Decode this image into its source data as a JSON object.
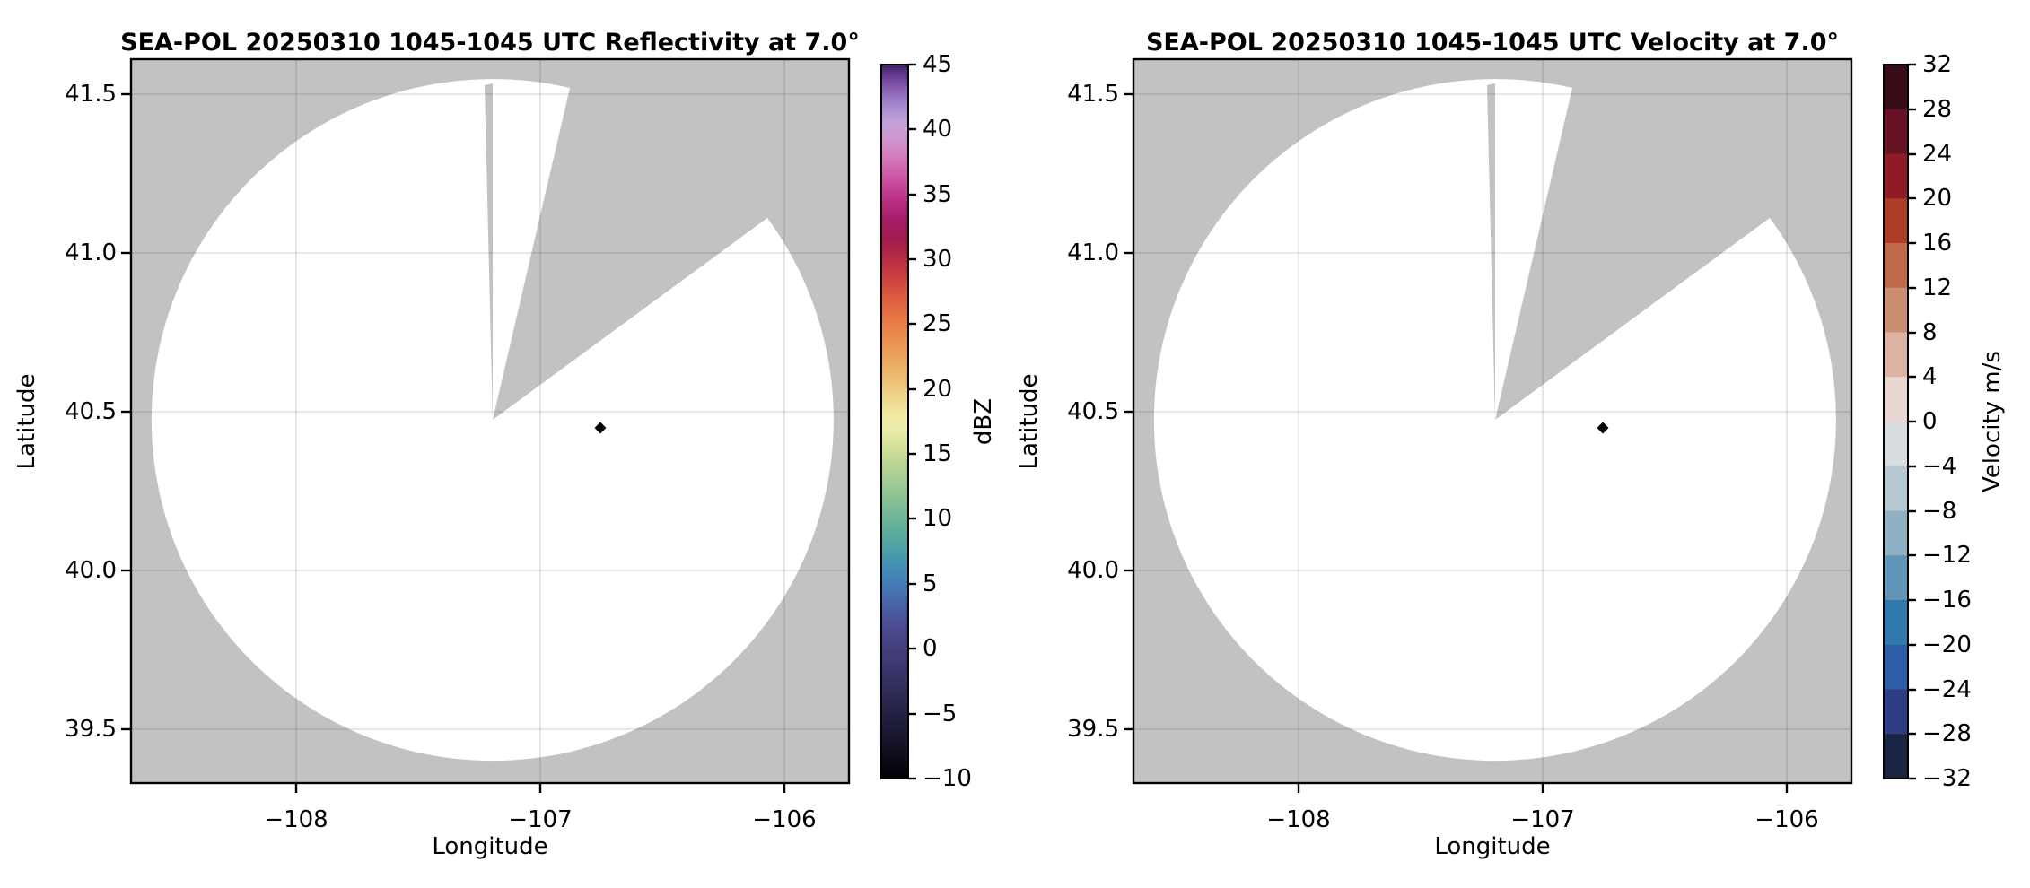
{
  "figure": {
    "background": "#ffffff",
    "panel_background": "#c2c2c2",
    "scan_fill": "#ffffff",
    "grid_color": "rgba(0,0,0,0.12)",
    "marker_color": "#000000"
  },
  "panels": [
    {
      "title": "SEA-POL 20250310 1045-1045 UTC Reflectivity at 7.0°",
      "xlabel": "Longitude",
      "ylabel": "Latitude",
      "x_tick_labels": [
        "−108",
        "−107",
        "−106"
      ],
      "y_tick_labels": [
        "41.5",
        "41.0",
        "40.5",
        "40.0",
        "39.5"
      ]
    },
    {
      "title": "SEA-POL 20250310 1045-1045 UTC Velocity at 7.0°",
      "xlabel": "Longitude",
      "ylabel": "Latitude",
      "x_tick_labels": [
        "−108",
        "−107",
        "−106"
      ],
      "y_tick_labels": [
        "41.5",
        "41.0",
        "40.5",
        "40.0",
        "39.5"
      ]
    }
  ],
  "reflectivity_colorbar": {
    "label": "dBZ",
    "vmin": -10,
    "vmax": 45,
    "tick_labels": [
      "45",
      "40",
      "35",
      "30",
      "25",
      "20",
      "15",
      "10",
      "5",
      "0",
      "−5",
      "−10"
    ],
    "gradient": [
      {
        "v": -10,
        "c": "#000003"
      },
      {
        "v": -8.5,
        "c": "#0c0b17"
      },
      {
        "v": -7,
        "c": "#16152a"
      },
      {
        "v": -5.5,
        "c": "#201e3d"
      },
      {
        "v": -4,
        "c": "#2a2750"
      },
      {
        "v": -2.5,
        "c": "#343061"
      },
      {
        "v": -1,
        "c": "#3e3a72"
      },
      {
        "v": 0.5,
        "c": "#474283"
      },
      {
        "v": 2,
        "c": "#4b4f95"
      },
      {
        "v": 3.5,
        "c": "#4a64a8"
      },
      {
        "v": 5,
        "c": "#437db8"
      },
      {
        "v": 6.5,
        "c": "#4392b2"
      },
      {
        "v": 8,
        "c": "#50a3a3"
      },
      {
        "v": 9.5,
        "c": "#64b09a"
      },
      {
        "v": 11,
        "c": "#7fbd94"
      },
      {
        "v": 12.5,
        "c": "#9cc893"
      },
      {
        "v": 14,
        "c": "#b7d395"
      },
      {
        "v": 15.5,
        "c": "#d2e099"
      },
      {
        "v": 17,
        "c": "#ecedaa"
      },
      {
        "v": 18,
        "c": "#f2e9a2"
      },
      {
        "v": 19.5,
        "c": "#edd289"
      },
      {
        "v": 21,
        "c": "#ecba6e"
      },
      {
        "v": 23,
        "c": "#ec9b57"
      },
      {
        "v": 25,
        "c": "#e97d45"
      },
      {
        "v": 27,
        "c": "#de5c3e"
      },
      {
        "v": 28.5,
        "c": "#cd4141"
      },
      {
        "v": 30,
        "c": "#b82c44"
      },
      {
        "v": 31.5,
        "c": "#a31c4e"
      },
      {
        "v": 33,
        "c": "#a51d68"
      },
      {
        "v": 34.5,
        "c": "#b92f85"
      },
      {
        "v": 36,
        "c": "#ca4d9f"
      },
      {
        "v": 37.5,
        "c": "#d472b8"
      },
      {
        "v": 39,
        "c": "#d392cc"
      },
      {
        "v": 40.5,
        "c": "#c3a3da"
      },
      {
        "v": 42,
        "c": "#a284cc"
      },
      {
        "v": 43.5,
        "c": "#7f52aa"
      },
      {
        "v": 44.5,
        "c": "#57307f"
      },
      {
        "v": 45,
        "c": "#3f1d68"
      }
    ]
  },
  "velocity_colorbar": {
    "label": "Velocity m/s",
    "vmin": -32,
    "vmax": 32,
    "tick_labels": [
      "32",
      "28",
      "24",
      "20",
      "16",
      "12",
      "8",
      "4",
      "0",
      "−4",
      "−8",
      "−12",
      "−16",
      "−20",
      "−24",
      "−28",
      "−32"
    ],
    "segments": [
      {
        "from": 28,
        "to": 32,
        "color": "#380d17"
      },
      {
        "from": 24,
        "to": 28,
        "color": "#671325"
      },
      {
        "from": 20,
        "to": 24,
        "color": "#8e1b26"
      },
      {
        "from": 16,
        "to": 20,
        "color": "#ad3d28"
      },
      {
        "from": 12,
        "to": 16,
        "color": "#c0694c"
      },
      {
        "from": 8,
        "to": 12,
        "color": "#cb8d71"
      },
      {
        "from": 4,
        "to": 8,
        "color": "#dcb3a2"
      },
      {
        "from": 0,
        "to": 4,
        "color": "#e9d8d1"
      },
      {
        "from": -4,
        "to": 0,
        "color": "#d8dde0"
      },
      {
        "from": -8,
        "to": -4,
        "color": "#b6c8d0"
      },
      {
        "from": -12,
        "to": -8,
        "color": "#8fb1c3"
      },
      {
        "from": -16,
        "to": -12,
        "color": "#6095b7"
      },
      {
        "from": -20,
        "to": -16,
        "color": "#3079ae"
      },
      {
        "from": -24,
        "to": -20,
        "color": "#2d5ca8"
      },
      {
        "from": -28,
        "to": -24,
        "color": "#2d3c85"
      },
      {
        "from": -32,
        "to": -28,
        "color": "#1b2442"
      }
    ]
  },
  "chart_data": [
    {
      "type": "heatmap",
      "title": "SEA-POL 20250310 1045-1045 UTC Reflectivity at 7.0°",
      "field": "reflectivity",
      "units": "dBZ",
      "xlabel": "Longitude",
      "ylabel": "Latitude",
      "xlim": [
        -108.68,
        -105.74
      ],
      "ylim": [
        39.33,
        41.62
      ],
      "x_ticks": [
        -108,
        -107,
        -106
      ],
      "y_ticks": [
        39.5,
        40.0,
        40.5,
        41.0,
        41.5
      ],
      "grid": true,
      "colorbar_range": [
        -10,
        45
      ],
      "colorbar_tick_step": 5,
      "radar_site": {
        "lon": -107.18,
        "lat": 40.47
      },
      "scan_radius_deg_lat": 1.07,
      "missing_sector_azimuth_deg": [
        13,
        54
      ],
      "marker": {
        "lon": -106.74,
        "lat": 40.45,
        "shape": "diamond",
        "color": "#000000"
      },
      "echoes": "none visible - entire scan area blank (below -10 dBZ / no data)"
    },
    {
      "type": "heatmap",
      "title": "SEA-POL 20250310 1045-1045 UTC Velocity at 7.0°",
      "field": "velocity",
      "units": "m/s",
      "xlabel": "Longitude",
      "ylabel": "Latitude",
      "xlim": [
        -108.68,
        -105.74
      ],
      "ylim": [
        39.33,
        41.62
      ],
      "x_ticks": [
        -108,
        -107,
        -106
      ],
      "y_ticks": [
        39.5,
        40.0,
        40.5,
        41.0,
        41.5
      ],
      "grid": true,
      "colorbar_range": [
        -32,
        32
      ],
      "colorbar_tick_step": 4,
      "radar_site": {
        "lon": -107.18,
        "lat": 40.47
      },
      "scan_radius_deg_lat": 1.07,
      "missing_sector_azimuth_deg": [
        13,
        54
      ],
      "marker": {
        "lon": -106.74,
        "lat": 40.45,
        "shape": "diamond",
        "color": "#000000"
      },
      "echoes": "none visible - entire scan area blank (no data)"
    }
  ]
}
